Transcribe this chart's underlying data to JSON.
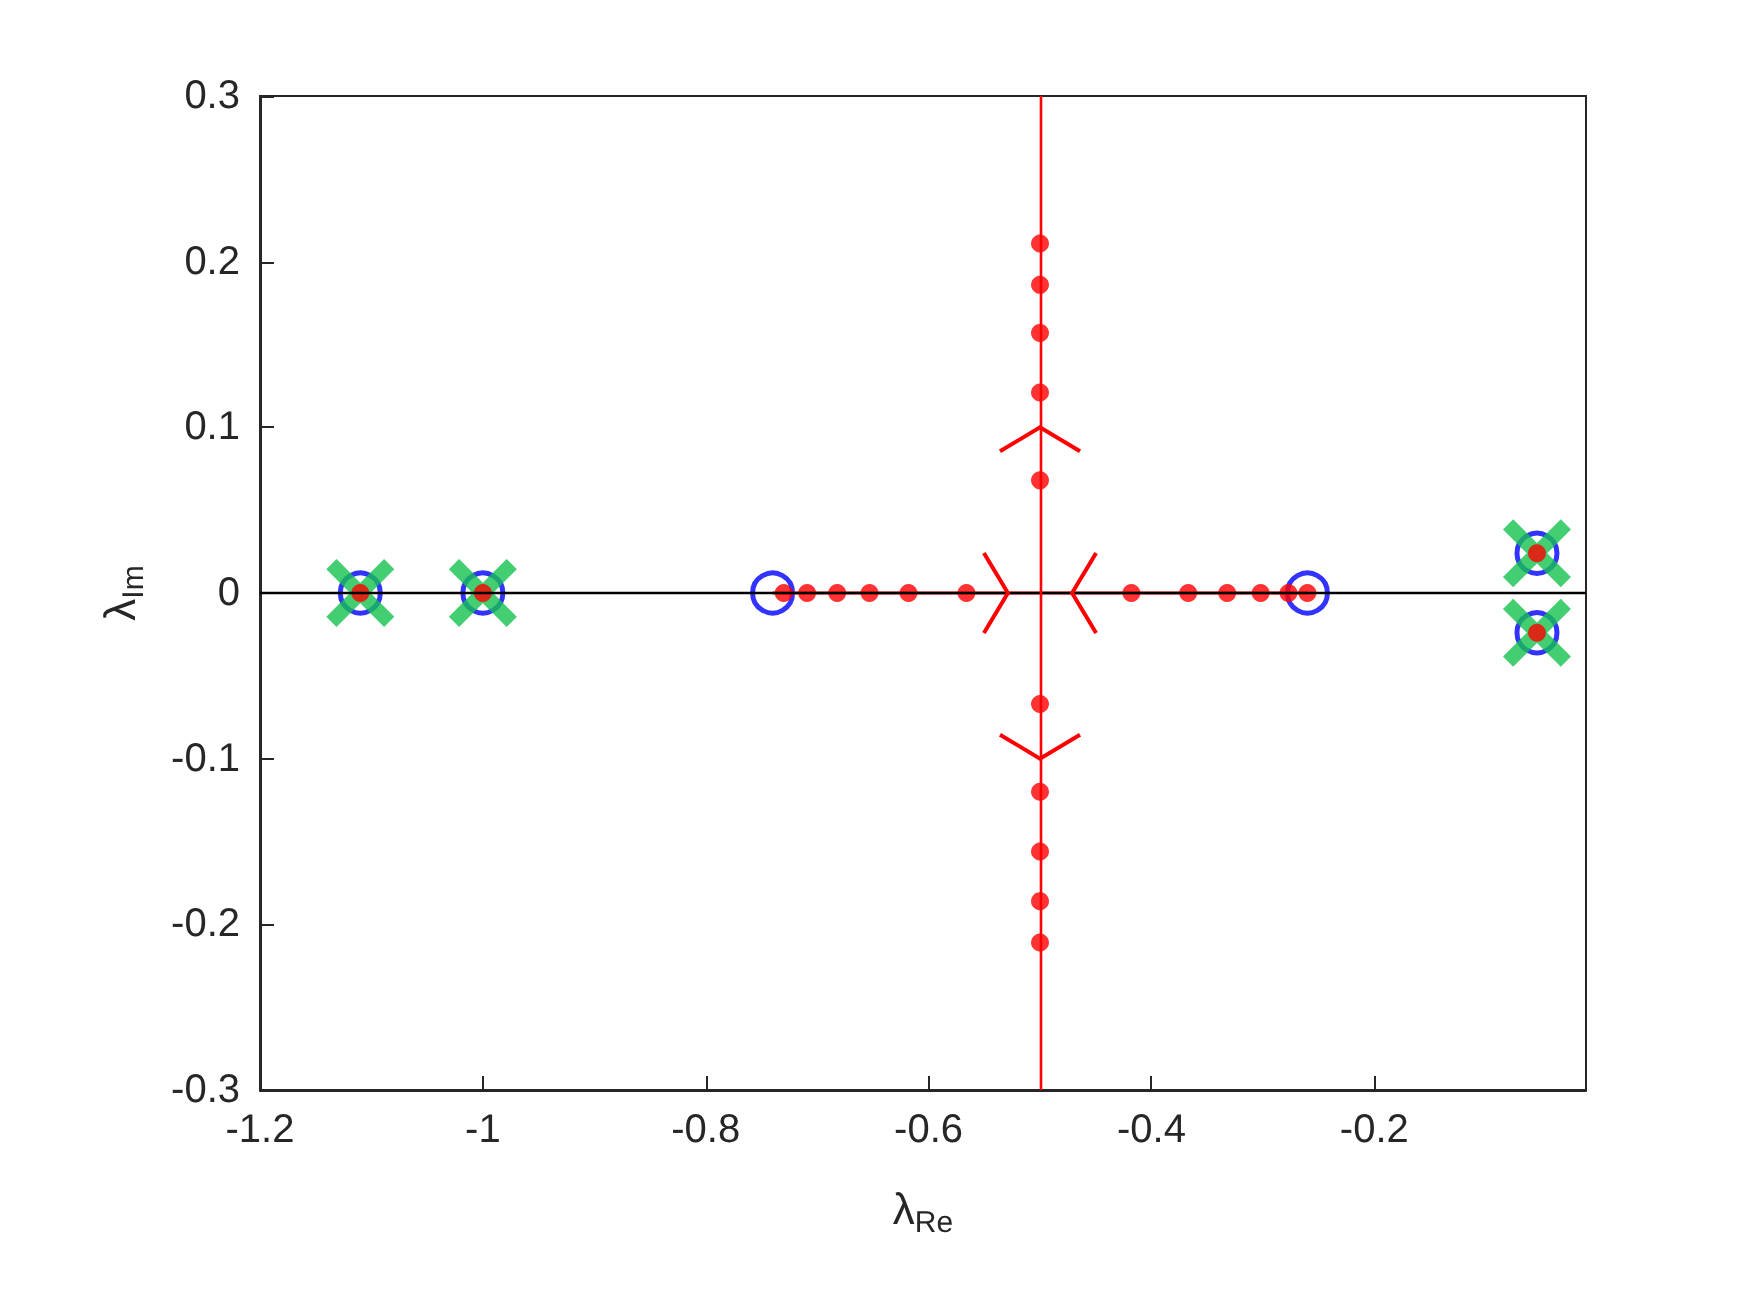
{
  "chart_data": {
    "type": "scatter",
    "xlabel": "λ$_{Re}$",
    "ylabel": "λ$_{Im}$",
    "xlim": [
      -1.2,
      -0.01
    ],
    "xticks": [
      -1.2,
      -1,
      -0.8,
      -0.6,
      -0.4,
      -0.2
    ],
    "ylim": [
      -0.3,
      0.3
    ],
    "yticks": [
      -0.3,
      -0.2,
      -0.1,
      0,
      0.1,
      0.2,
      0.3
    ],
    "grid": false,
    "ref_lines": [
      {
        "axis": "y",
        "value": 0,
        "color": "#000000"
      },
      {
        "axis": "x",
        "value": -0.5,
        "color": "#ff0000"
      }
    ],
    "series": [
      {
        "type": "line",
        "color": "#ff0000",
        "marker": "none",
        "x": [
          -0.74,
          -0.26
        ],
        "values": [
          0,
          0
        ]
      },
      {
        "color": "#0000ff",
        "marker": "circle",
        "x": [
          -1.11,
          -1,
          -0.74,
          -0.26,
          -0.054,
          -0.054
        ],
        "values": [
          0,
          0,
          0,
          0,
          0.024,
          -0.024
        ]
      },
      {
        "color": "#14c24f",
        "marker": "cross",
        "x": [
          -1.11,
          -1,
          -0.054,
          -0.054
        ],
        "values": [
          0,
          0,
          0.024,
          -0.024
        ]
      },
      {
        "color": "#ff0000",
        "marker": "circle",
        "x": [
          -1.11,
          -1,
          -0.054,
          -0.054,
          -0.73,
          -0.709,
          -0.682,
          -0.653,
          -0.618,
          -0.566,
          -0.418,
          -0.367,
          -0.332,
          -0.302,
          -0.277,
          -0.26,
          -0.5,
          -0.5,
          -0.5,
          -0.5,
          -0.5,
          -0.5,
          -0.5,
          -0.5,
          -0.5,
          -0.5
        ],
        "values": [
          0,
          0,
          0.024,
          -0.024,
          0,
          0,
          0,
          0,
          0,
          0,
          0,
          0,
          0,
          0,
          0,
          0,
          0.211,
          0.186,
          0.157,
          0.121,
          0.068,
          -0.067,
          -0.12,
          -0.156,
          -0.186,
          -0.211
        ]
      }
    ]
  }
}
